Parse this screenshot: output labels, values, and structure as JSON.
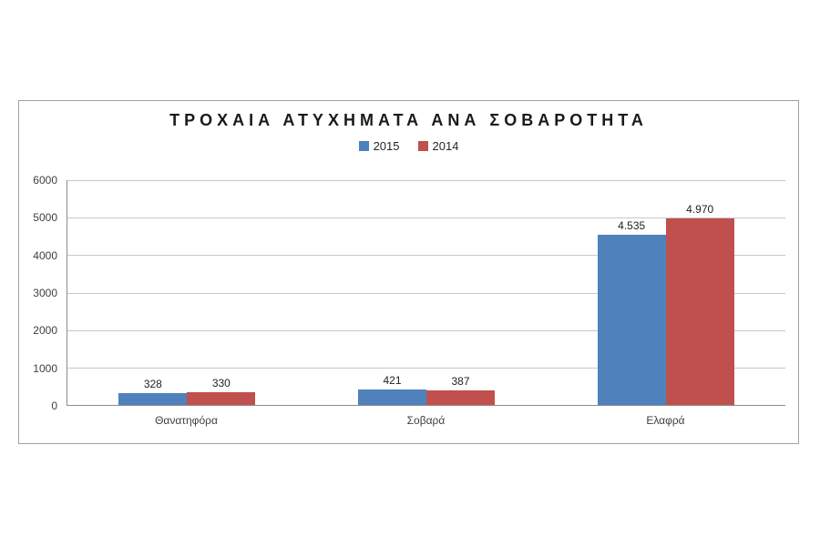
{
  "title": "ΤΡΟΧΑΙΑ ΑΤΥΧΗΜΑΤΑ ΑΝΑ ΣΟΒΑΡΟΤΗΤΑ",
  "colors": {
    "series_2015": "#4F81BD",
    "series_2014": "#C0504D",
    "gridline": "#C8C8C8",
    "axis_line": "#8C8C8C",
    "frame_border": "#A0A0A0",
    "title_text": "#1A1A1A"
  },
  "chart_data": {
    "type": "bar",
    "title": "ΤΡΟΧΑΙΑ ΑΤΥΧΗΜΑΤΑ ΑΝΑ ΣΟΒΑΡΟΤΗΤΑ",
    "categories": [
      "Θανατηφόρα",
      "Σοβαρά",
      "Ελαφρά"
    ],
    "series": [
      {
        "name": "2015",
        "color": "#4F81BD",
        "values": [
          328,
          421,
          4535
        ],
        "value_labels": [
          "328",
          "421",
          "4.535"
        ]
      },
      {
        "name": "2014",
        "color": "#C0504D",
        "values": [
          330,
          387,
          4970
        ],
        "value_labels": [
          "330",
          "387",
          "4.970"
        ]
      }
    ],
    "ylim": [
      0,
      6000
    ],
    "yticks": [
      0,
      1000,
      2000,
      3000,
      4000,
      5000,
      6000
    ],
    "ytick_labels": [
      "0",
      "1000",
      "2000",
      "3000",
      "4000",
      "5000",
      "6000"
    ],
    "grid": true,
    "legend_position": "top",
    "xlabel": "",
    "ylabel": ""
  }
}
